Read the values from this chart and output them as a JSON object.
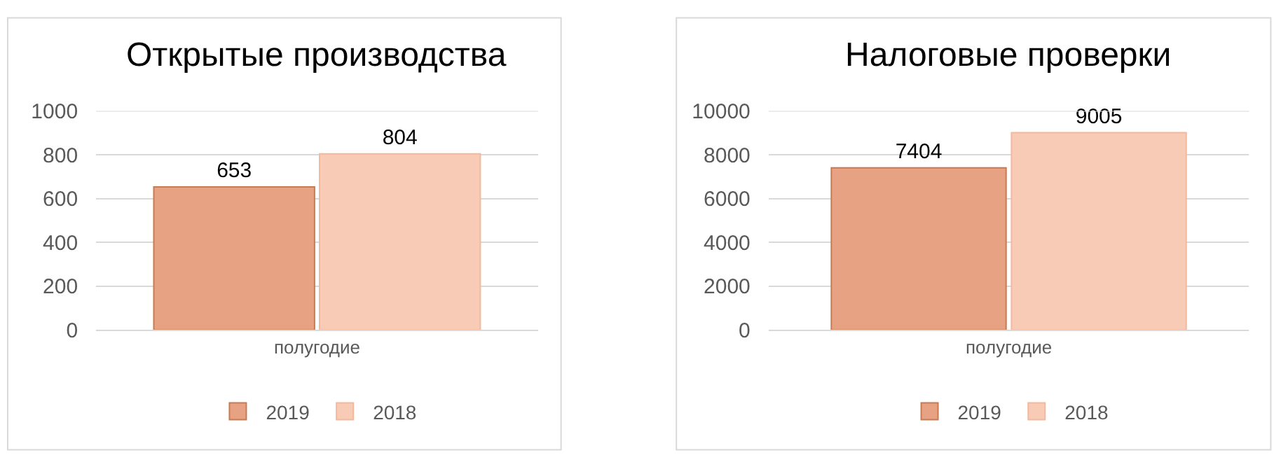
{
  "chart_data": [
    {
      "type": "bar",
      "title": "Открытые производства",
      "categories": [
        "полугодие"
      ],
      "series": [
        {
          "name": "2019",
          "color": "#e6a283",
          "values": [
            653
          ]
        },
        {
          "name": "2018",
          "color": "#f8cbb6",
          "values": [
            804
          ]
        }
      ],
      "ylim": [
        0,
        1000
      ],
      "yticks": [
        0,
        200,
        400,
        600,
        800,
        1000
      ],
      "grid": "y",
      "legend": "bottom",
      "data_labels": true
    },
    {
      "type": "bar",
      "title": "Налоговые проверки",
      "categories": [
        "полугодие"
      ],
      "series": [
        {
          "name": "2019",
          "color": "#e6a283",
          "values": [
            7404
          ]
        },
        {
          "name": "2018",
          "color": "#f8cbb6",
          "values": [
            9005
          ]
        }
      ],
      "ylim": [
        0,
        10000
      ],
      "yticks": [
        0,
        2000,
        4000,
        6000,
        8000,
        10000
      ],
      "grid": "y",
      "legend": "bottom",
      "data_labels": true
    }
  ]
}
